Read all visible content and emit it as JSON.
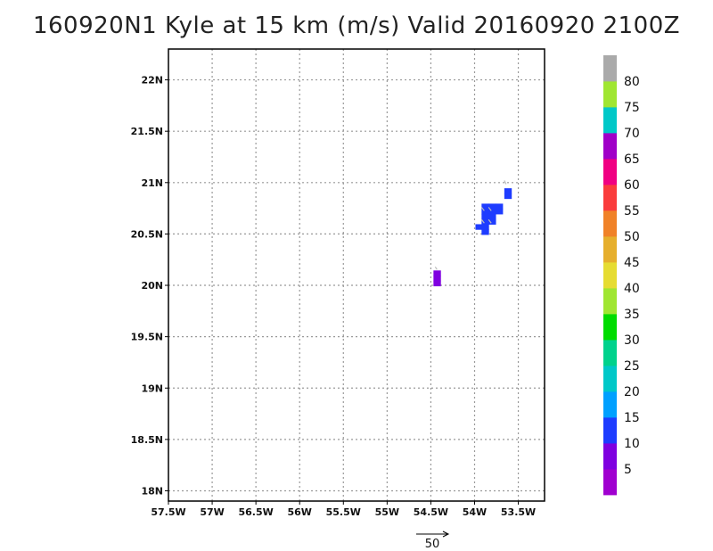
{
  "chart_data": {
    "type": "heatmap",
    "title": "160920N1 Kyle at 15 km (m/s) Valid 20160920 2100Z",
    "xlim": [
      -57.5,
      -53.2
    ],
    "ylim": [
      17.9,
      22.3
    ],
    "x_ticks": [
      {
        "value": -57.5,
        "label": "57.5W"
      },
      {
        "value": -57.0,
        "label": "57W"
      },
      {
        "value": -56.5,
        "label": "56.5W"
      },
      {
        "value": -56.0,
        "label": "56W"
      },
      {
        "value": -55.5,
        "label": "55.5W"
      },
      {
        "value": -55.0,
        "label": "55W"
      },
      {
        "value": -54.5,
        "label": "54.5W"
      },
      {
        "value": -54.0,
        "label": "54W"
      },
      {
        "value": -53.5,
        "label": "53.5W"
      }
    ],
    "y_ticks": [
      {
        "value": 18.0,
        "label": "18N"
      },
      {
        "value": 18.5,
        "label": "18.5N"
      },
      {
        "value": 19.0,
        "label": "19N"
      },
      {
        "value": 19.5,
        "label": "19.5N"
      },
      {
        "value": 20.0,
        "label": "20N"
      },
      {
        "value": 20.5,
        "label": "20.5N"
      },
      {
        "value": 21.0,
        "label": "21N"
      },
      {
        "value": 21.5,
        "label": "21.5N"
      },
      {
        "value": 22.0,
        "label": "22N"
      }
    ],
    "grid": true,
    "colorbar": {
      "placement": "right",
      "bins": [
        {
          "min": 0,
          "max": 5,
          "color": "#a000d0"
        },
        {
          "min": 5,
          "max": 10,
          "color": "#7f00e0"
        },
        {
          "min": 10,
          "max": 15,
          "color": "#1e3cff"
        },
        {
          "min": 15,
          "max": 20,
          "color": "#00a0ff"
        },
        {
          "min": 20,
          "max": 25,
          "color": "#00c8c8"
        },
        {
          "min": 25,
          "max": 30,
          "color": "#00d28c"
        },
        {
          "min": 30,
          "max": 35,
          "color": "#00dc00"
        },
        {
          "min": 35,
          "max": 40,
          "color": "#a0e632"
        },
        {
          "min": 40,
          "max": 45,
          "color": "#e6dc32"
        },
        {
          "min": 45,
          "max": 50,
          "color": "#e6af2d"
        },
        {
          "min": 50,
          "max": 55,
          "color": "#f08228"
        },
        {
          "min": 55,
          "max": 60,
          "color": "#fa3c3c"
        },
        {
          "min": 60,
          "max": 65,
          "color": "#f00082"
        },
        {
          "min": 65,
          "max": 70,
          "color": "#a000c8"
        },
        {
          "min": 70,
          "max": 75,
          "color": "#00c8c8"
        },
        {
          "min": 75,
          "max": 80,
          "color": "#a0e632"
        },
        {
          "min": 80,
          "max": 85,
          "color": "#aaaaaa"
        }
      ],
      "labels": [
        "5",
        "10",
        "15",
        "20",
        "25",
        "30",
        "35",
        "40",
        "45",
        "50",
        "55",
        "60",
        "65",
        "70",
        "75",
        "80"
      ]
    },
    "cells": [
      {
        "lon": -53.62,
        "lat": 20.92,
        "value": 12
      },
      {
        "lon": -53.62,
        "lat": 20.87,
        "value": 12
      },
      {
        "lon": -53.8,
        "lat": 20.77,
        "value": 12
      },
      {
        "lon": -53.72,
        "lat": 20.77,
        "value": 12
      },
      {
        "lon": -53.88,
        "lat": 20.77,
        "value": 12
      },
      {
        "lon": -53.72,
        "lat": 20.72,
        "value": 12
      },
      {
        "lon": -53.8,
        "lat": 20.72,
        "value": 12
      },
      {
        "lon": -53.88,
        "lat": 20.72,
        "value": 12
      },
      {
        "lon": -53.8,
        "lat": 20.67,
        "value": 12
      },
      {
        "lon": -53.88,
        "lat": 20.67,
        "value": 12
      },
      {
        "lon": -53.8,
        "lat": 20.62,
        "value": 12
      },
      {
        "lon": -53.88,
        "lat": 20.62,
        "value": 12
      },
      {
        "lon": -53.95,
        "lat": 20.57,
        "value": 12
      },
      {
        "lon": -53.88,
        "lat": 20.57,
        "value": 12
      },
      {
        "lon": -53.88,
        "lat": 20.52,
        "value": 12
      },
      {
        "lon": -54.43,
        "lat": 20.12,
        "value": 8
      },
      {
        "lon": -54.43,
        "lat": 20.07,
        "value": 8
      },
      {
        "lon": -54.43,
        "lat": 20.02,
        "value": 6
      }
    ],
    "vectors": [
      {
        "lon": -53.66,
        "lat": 21.02,
        "u": 2,
        "v": -4
      },
      {
        "lon": -53.92,
        "lat": 20.76,
        "u": 3,
        "v": -4
      },
      {
        "lon": -53.84,
        "lat": 20.76,
        "u": 3,
        "v": -4
      },
      {
        "lon": -53.92,
        "lat": 20.64,
        "u": 3,
        "v": -4
      },
      {
        "lon": -53.84,
        "lat": 20.64,
        "u": 3,
        "v": -4
      },
      {
        "lon": -54.45,
        "lat": 20.18,
        "u": 2,
        "v": -3
      }
    ],
    "reference_vector": {
      "label": "50",
      "value": 50
    }
  }
}
